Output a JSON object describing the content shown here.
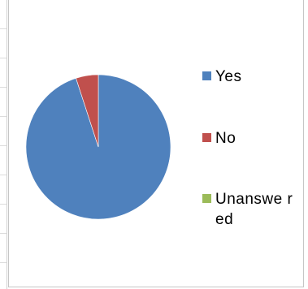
{
  "chart_data": {
    "type": "pie",
    "title": "",
    "categories": [
      "Yes",
      "No",
      "Unanswered"
    ],
    "values": [
      95,
      5,
      0
    ],
    "colors": [
      "#4f81bd",
      "#c0504d",
      "#9bbb59"
    ],
    "legend_position": "right",
    "start_angle": "top",
    "direction": "clockwise"
  },
  "legend": {
    "items": [
      {
        "label": "Yes",
        "color": "#4f81bd"
      },
      {
        "label": "No",
        "color": "#c0504d"
      },
      {
        "label": "Unanswe red",
        "color": "#9bbb59"
      }
    ]
  }
}
